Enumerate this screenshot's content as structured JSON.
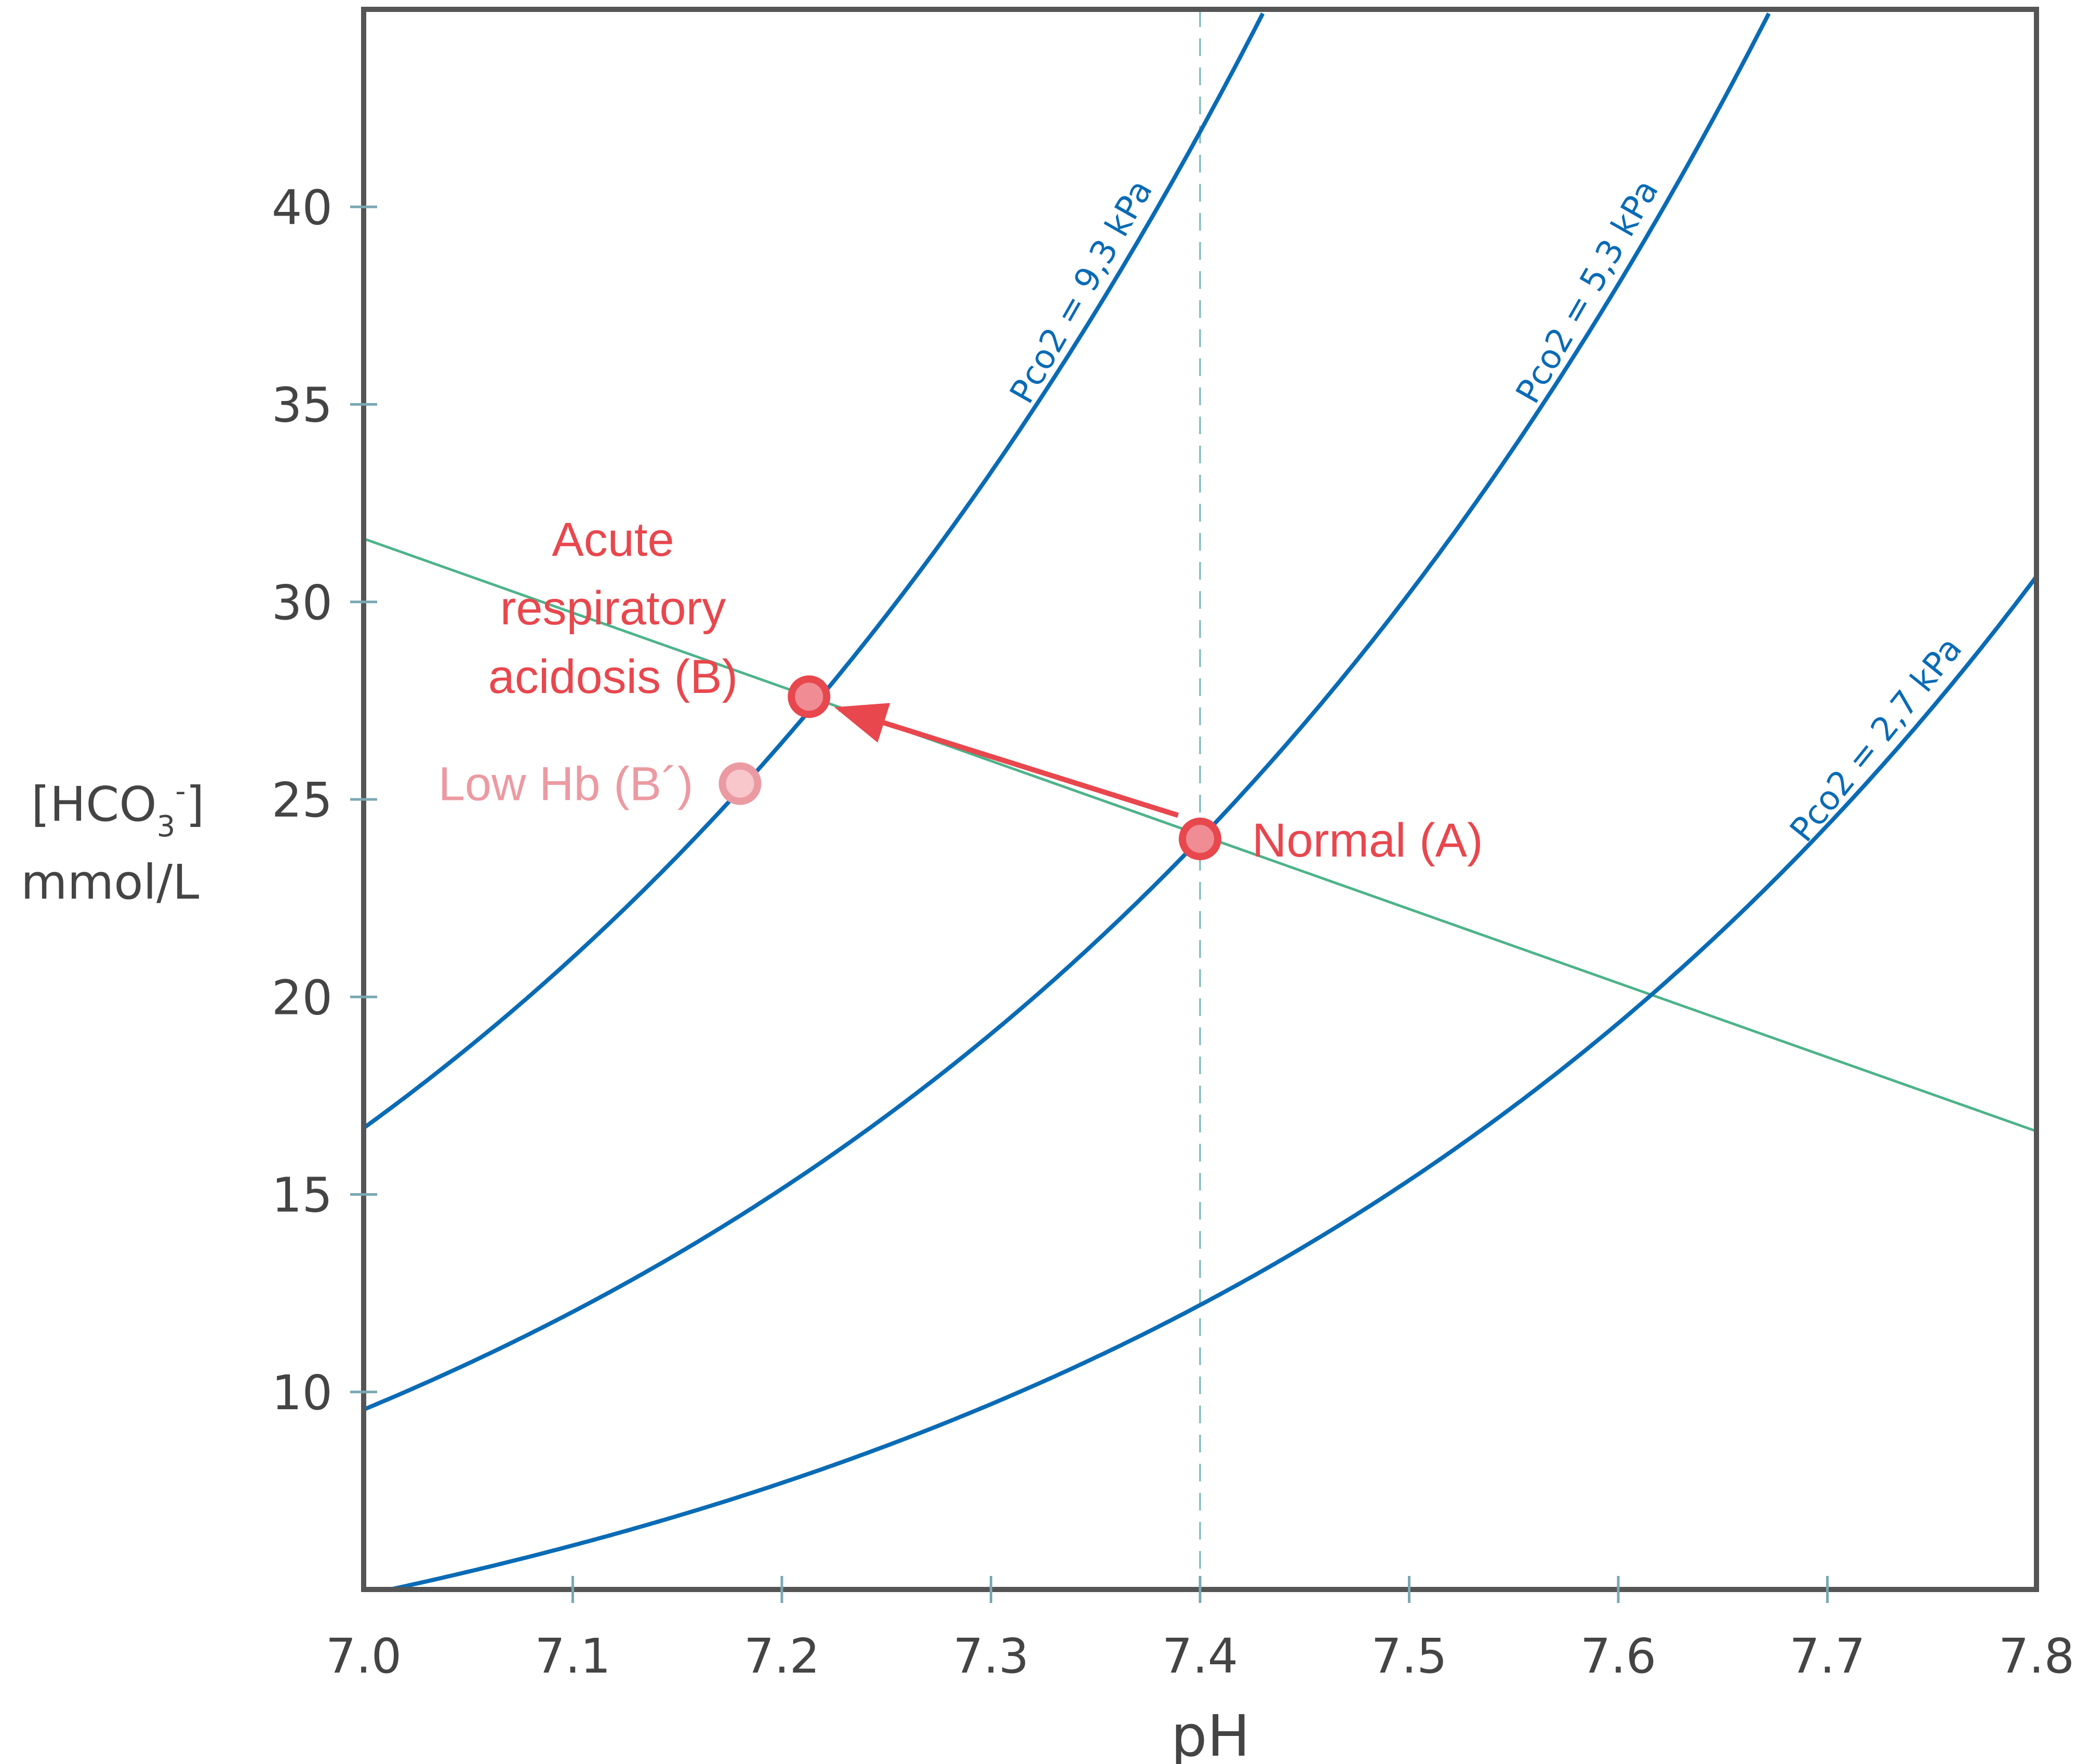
{
  "chart_data": {
    "type": "line",
    "title": "",
    "xlabel": "pH",
    "ylabel": {
      "line1_prefix": "[HCO",
      "line1_sub": "3",
      "line1_sup": "-",
      "line1_suffix": "]",
      "line2": "mmol/L"
    },
    "xlim": [
      7.0,
      7.8
    ],
    "ylim": [
      5,
      45
    ],
    "x_ticks": [
      7.0,
      7.1,
      7.2,
      7.3,
      7.4,
      7.5,
      7.6,
      7.7,
      7.8
    ],
    "x_tick_labels": [
      "7.0",
      "7.1",
      "7.2",
      "7.3",
      "7.4",
      "7.5",
      "7.6",
      "7.7",
      "7.8"
    ],
    "y_ticks": [
      10,
      15,
      20,
      25,
      30,
      35,
      40
    ],
    "y_tick_labels": [
      "10",
      "15",
      "20",
      "25",
      "30",
      "35",
      "40"
    ],
    "grid": false,
    "reference_line": {
      "x": 7.4,
      "style": "dashed"
    },
    "isobars": [
      {
        "name": "Pco2 = 9,3 kPa",
        "label": "Pco2 = 9,3 kPa",
        "pco2_kpa": 9.3,
        "hco3_at_pH_7_4": 41.9
      },
      {
        "name": "Pco2 = 5,3 kPa",
        "label": "Pco2 = 5,3 kPa",
        "pco2_kpa": 5.3,
        "hco3_at_pH_7_4": 24.0
      },
      {
        "name": "Pco2 = 2,7 kPa",
        "label": "Pco2 = 2,7 kPa",
        "pco2_kpa": 2.7,
        "hco3_at_pH_7_4": 12.2
      }
    ],
    "buffer_line": {
      "x": [
        7.0,
        7.8
      ],
      "y": [
        31.6,
        16.6
      ]
    },
    "points": [
      {
        "id": "A",
        "label": "Normal (A)",
        "x": 7.4,
        "y": 24.0
      },
      {
        "id": "B",
        "label": "Acute respiratory acidosis (B)",
        "label_lines": [
          "Acute",
          "respiratory",
          "acidosis (B)"
        ],
        "x": 7.213,
        "y": 27.6
      },
      {
        "id": "B2",
        "label": "Low Hb (B´)",
        "x": 7.18,
        "y": 25.4
      }
    ],
    "arrow": {
      "from": "A",
      "to": "B"
    },
    "colors": {
      "isobar": "#0a6bb5",
      "buffer_line": "#4db38a",
      "reference_line": "#8fc4c0",
      "annotation": "#e8474e",
      "low_hb": "#ec9aa2",
      "frame": "#555555",
      "tick": "#7aa8b2",
      "text": "#444444"
    }
  }
}
